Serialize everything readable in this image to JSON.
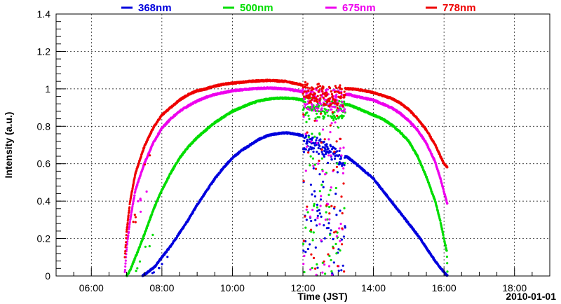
{
  "chart_data": {
    "type": "scatter",
    "title": "",
    "xlabel": "Time (JST)",
    "ylabel": "Intensity (a.u.)",
    "date_label": "2010-01-01",
    "xlim_hours": [
      5.0,
      19.0
    ],
    "ylim": [
      0,
      1.4
    ],
    "x_ticks": [
      {
        "hour": 6,
        "label": "06:00"
      },
      {
        "hour": 8,
        "label": "08:00"
      },
      {
        "hour": 10,
        "label": "10:00"
      },
      {
        "hour": 12,
        "label": "12:00"
      },
      {
        "hour": 14,
        "label": "14:00"
      },
      {
        "hour": 16,
        "label": "16:00"
      },
      {
        "hour": 18,
        "label": "18:00"
      }
    ],
    "y_ticks": [
      {
        "value": 0,
        "label": "0"
      },
      {
        "value": 0.2,
        "label": "0.2"
      },
      {
        "value": 0.4,
        "label": "0.4"
      },
      {
        "value": 0.6,
        "label": "0.6"
      },
      {
        "value": 0.8,
        "label": "0.8"
      },
      {
        "value": 1.0,
        "label": "1"
      },
      {
        "value": 1.2,
        "label": "1.2"
      },
      {
        "value": 1.4,
        "label": "1.4"
      }
    ],
    "grid": true,
    "legend_position": "top",
    "cloud_gap_hours": [
      12.0,
      13.2
    ],
    "series": [
      {
        "name": "368nm",
        "color": "#0000dd",
        "points": [
          [
            7.45,
            0.0
          ],
          [
            7.6,
            0.02
          ],
          [
            7.8,
            0.05
          ],
          [
            8.0,
            0.1
          ],
          [
            8.25,
            0.16
          ],
          [
            8.5,
            0.23
          ],
          [
            8.75,
            0.3
          ],
          [
            9.0,
            0.38
          ],
          [
            9.25,
            0.45
          ],
          [
            9.5,
            0.52
          ],
          [
            9.75,
            0.58
          ],
          [
            10.0,
            0.63
          ],
          [
            10.25,
            0.67
          ],
          [
            10.5,
            0.7
          ],
          [
            10.75,
            0.73
          ],
          [
            11.0,
            0.75
          ],
          [
            11.25,
            0.76
          ],
          [
            11.5,
            0.765
          ],
          [
            11.75,
            0.76
          ],
          [
            12.0,
            0.75
          ],
          [
            12.5,
            0.72
          ],
          [
            13.3,
            0.63
          ],
          [
            13.5,
            0.6
          ],
          [
            13.75,
            0.56
          ],
          [
            14.0,
            0.52
          ],
          [
            14.25,
            0.46
          ],
          [
            14.5,
            0.4
          ],
          [
            14.75,
            0.34
          ],
          [
            15.0,
            0.28
          ],
          [
            15.25,
            0.22
          ],
          [
            15.5,
            0.15
          ],
          [
            15.75,
            0.08
          ],
          [
            16.0,
            0.02
          ],
          [
            16.1,
            0.0
          ]
        ]
      },
      {
        "name": "500nm",
        "color": "#00dd00",
        "points": [
          [
            7.0,
            0.0
          ],
          [
            7.1,
            0.03
          ],
          [
            7.25,
            0.1
          ],
          [
            7.5,
            0.22
          ],
          [
            7.75,
            0.35
          ],
          [
            8.0,
            0.46
          ],
          [
            8.25,
            0.55
          ],
          [
            8.5,
            0.63
          ],
          [
            8.75,
            0.69
          ],
          [
            9.0,
            0.74
          ],
          [
            9.25,
            0.78
          ],
          [
            9.5,
            0.82
          ],
          [
            9.75,
            0.85
          ],
          [
            10.0,
            0.88
          ],
          [
            10.25,
            0.9
          ],
          [
            10.5,
            0.92
          ],
          [
            10.75,
            0.935
          ],
          [
            11.0,
            0.945
          ],
          [
            11.25,
            0.95
          ],
          [
            11.5,
            0.95
          ],
          [
            11.75,
            0.948
          ],
          [
            12.0,
            0.94
          ],
          [
            12.5,
            0.93
          ],
          [
            13.3,
            0.915
          ],
          [
            13.5,
            0.9
          ],
          [
            13.75,
            0.88
          ],
          [
            14.0,
            0.86
          ],
          [
            14.25,
            0.84
          ],
          [
            14.5,
            0.81
          ],
          [
            14.75,
            0.77
          ],
          [
            15.0,
            0.72
          ],
          [
            15.25,
            0.64
          ],
          [
            15.5,
            0.53
          ],
          [
            15.75,
            0.4
          ],
          [
            15.9,
            0.29
          ],
          [
            16.0,
            0.2
          ],
          [
            16.08,
            0.13
          ],
          [
            16.1,
            0.0
          ]
        ]
      },
      {
        "name": "675nm",
        "color": "#ee00ee",
        "points": [
          [
            6.95,
            0.02
          ],
          [
            7.0,
            0.15
          ],
          [
            7.1,
            0.3
          ],
          [
            7.25,
            0.46
          ],
          [
            7.5,
            0.6
          ],
          [
            7.75,
            0.71
          ],
          [
            8.0,
            0.79
          ],
          [
            8.25,
            0.84
          ],
          [
            8.5,
            0.88
          ],
          [
            8.75,
            0.91
          ],
          [
            9.0,
            0.935
          ],
          [
            9.25,
            0.955
          ],
          [
            9.5,
            0.97
          ],
          [
            9.75,
            0.98
          ],
          [
            10.0,
            0.99
          ],
          [
            10.5,
            1.0
          ],
          [
            11.0,
            1.005
          ],
          [
            11.5,
            1.0
          ],
          [
            12.0,
            0.985
          ],
          [
            12.5,
            0.98
          ],
          [
            13.3,
            0.97
          ],
          [
            13.5,
            0.96
          ],
          [
            13.75,
            0.95
          ],
          [
            14.0,
            0.94
          ],
          [
            14.25,
            0.92
          ],
          [
            14.5,
            0.9
          ],
          [
            14.75,
            0.87
          ],
          [
            15.0,
            0.83
          ],
          [
            15.25,
            0.78
          ],
          [
            15.5,
            0.71
          ],
          [
            15.75,
            0.61
          ],
          [
            15.9,
            0.52
          ],
          [
            16.0,
            0.45
          ],
          [
            16.1,
            0.38
          ]
        ]
      },
      {
        "name": "778nm",
        "color": "#ee0000",
        "points": [
          [
            6.95,
            0.1
          ],
          [
            7.0,
            0.24
          ],
          [
            7.1,
            0.4
          ],
          [
            7.25,
            0.55
          ],
          [
            7.5,
            0.69
          ],
          [
            7.75,
            0.79
          ],
          [
            8.0,
            0.86
          ],
          [
            8.25,
            0.9
          ],
          [
            8.5,
            0.94
          ],
          [
            8.75,
            0.97
          ],
          [
            9.0,
            0.99
          ],
          [
            9.25,
            1.0
          ],
          [
            9.5,
            1.015
          ],
          [
            9.75,
            1.025
          ],
          [
            10.0,
            1.03
          ],
          [
            10.5,
            1.04
          ],
          [
            11.0,
            1.045
          ],
          [
            11.5,
            1.04
          ],
          [
            12.0,
            1.02
          ],
          [
            12.5,
            1.015
          ],
          [
            13.3,
            1.0
          ],
          [
            13.5,
            0.998
          ],
          [
            13.75,
            0.99
          ],
          [
            14.0,
            0.98
          ],
          [
            14.25,
            0.965
          ],
          [
            14.5,
            0.95
          ],
          [
            14.75,
            0.925
          ],
          [
            15.0,
            0.89
          ],
          [
            15.25,
            0.84
          ],
          [
            15.5,
            0.78
          ],
          [
            15.75,
            0.7
          ],
          [
            15.9,
            0.64
          ],
          [
            16.0,
            0.6
          ],
          [
            16.1,
            0.58
          ]
        ]
      }
    ]
  }
}
